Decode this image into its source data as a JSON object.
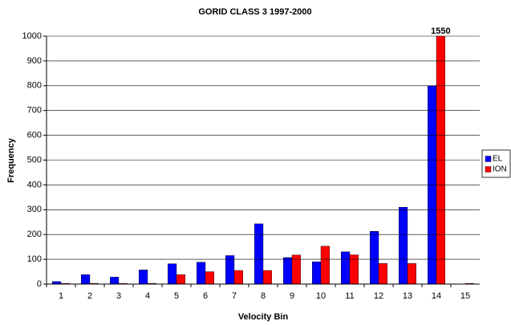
{
  "chart_data": {
    "type": "bar",
    "title": "GORID CLASS 3 1997-2000",
    "x_label": "Velocity Bin",
    "y_label": "Frequency",
    "categories": [
      "1",
      "2",
      "3",
      "4",
      "5",
      "6",
      "7",
      "8",
      "9",
      "10",
      "11",
      "12",
      "13",
      "14",
      "15"
    ],
    "series": [
      {
        "name": "EL",
        "color": "#0000ff",
        "values": [
          10,
          38,
          28,
          57,
          82,
          88,
          115,
          243,
          107,
          90,
          130,
          213,
          310,
          800,
          0
        ]
      },
      {
        "name": "ION",
        "color": "#ff0000",
        "values": [
          3,
          3,
          3,
          3,
          38,
          50,
          55,
          55,
          117,
          153,
          118,
          83,
          83,
          1550,
          3
        ],
        "value_labels": [
          null,
          null,
          null,
          null,
          null,
          null,
          null,
          null,
          null,
          null,
          null,
          null,
          null,
          "1550",
          null
        ]
      }
    ],
    "ylim": [
      0,
      1000
    ],
    "yticks": [
      0,
      100,
      200,
      300,
      400,
      500,
      600,
      700,
      800,
      900,
      1000
    ],
    "grid": true,
    "legend": "right"
  }
}
